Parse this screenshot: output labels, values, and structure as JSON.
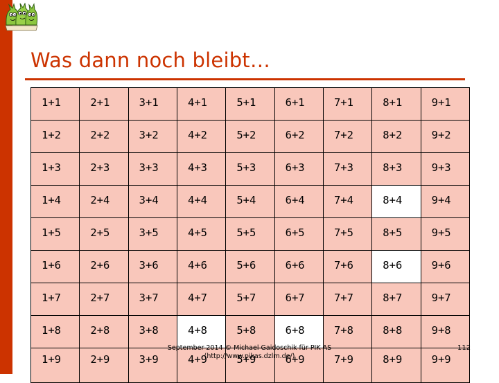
{
  "slide": {
    "title": "Was dann noch bleibt…",
    "accent_color": "#cc3300",
    "cell_fill_color": "#f9c7bb",
    "highlight_fill_color": "#ffffff"
  },
  "logo": {
    "icon": "dragon-mascots-logo"
  },
  "table": {
    "rows": [
      [
        "1+1",
        "2+1",
        "3+1",
        "4+1",
        "5+1",
        "6+1",
        "7+1",
        "8+1",
        "9+1"
      ],
      [
        "1+2",
        "2+2",
        "3+2",
        "4+2",
        "5+2",
        "6+2",
        "7+2",
        "8+2",
        "9+2"
      ],
      [
        "1+3",
        "2+3",
        "3+3",
        "4+3",
        "5+3",
        "6+3",
        "7+3",
        "8+3",
        "9+3"
      ],
      [
        "1+4",
        "2+4",
        "3+4",
        "4+4",
        "5+4",
        "6+4",
        "7+4",
        "8+4",
        "9+4"
      ],
      [
        "1+5",
        "2+5",
        "3+5",
        "4+5",
        "5+5",
        "6+5",
        "7+5",
        "8+5",
        "9+5"
      ],
      [
        "1+6",
        "2+6",
        "3+6",
        "4+6",
        "5+6",
        "6+6",
        "7+6",
        "8+6",
        "9+6"
      ],
      [
        "1+7",
        "2+7",
        "3+7",
        "4+7",
        "5+7",
        "6+7",
        "7+7",
        "8+7",
        "9+7"
      ],
      [
        "1+8",
        "2+8",
        "3+8",
        "4+8",
        "5+8",
        "6+8",
        "7+8",
        "8+8",
        "9+8"
      ],
      [
        "1+9",
        "2+9",
        "3+9",
        "4+9",
        "5+9",
        "6+9",
        "7+9",
        "8+9",
        "9+9"
      ]
    ],
    "highlighted_cells": [
      "8+4",
      "8+6",
      "4+8",
      "6+8"
    ]
  },
  "footer": {
    "text": "September 2014 © Michael Gaidoschik für PIK AS",
    "url": "(http://www.pikas.dzlm.de/)"
  },
  "page_number": "112"
}
